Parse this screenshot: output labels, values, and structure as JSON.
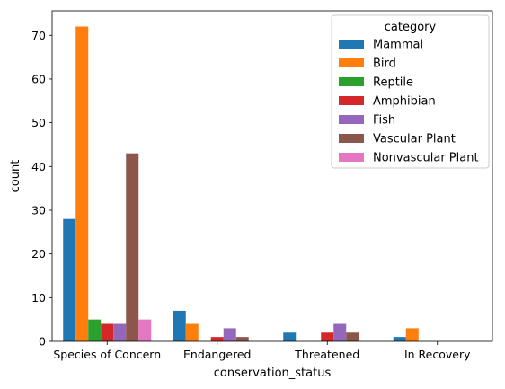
{
  "chart_data": {
    "type": "bar",
    "xlabel": "conservation_status",
    "ylabel": "count",
    "categories": [
      "Species of Concern",
      "Endangered",
      "Threatened",
      "In Recovery"
    ],
    "yticks": [
      0,
      10,
      20,
      30,
      40,
      50,
      60,
      70
    ],
    "ylim": [
      0,
      75.6
    ],
    "legend": {
      "title": "category",
      "placement": "top-right"
    },
    "series": [
      {
        "name": "Mammal",
        "color": "#1f77b4",
        "values": [
          28,
          7,
          2,
          1
        ]
      },
      {
        "name": "Bird",
        "color": "#ff7f0e",
        "values": [
          72,
          4,
          0,
          3
        ]
      },
      {
        "name": "Reptile",
        "color": "#2ca02c",
        "values": [
          5,
          0,
          0,
          0
        ]
      },
      {
        "name": "Amphibian",
        "color": "#d62728",
        "values": [
          4,
          1,
          2,
          0
        ]
      },
      {
        "name": "Fish",
        "color": "#9467bd",
        "values": [
          4,
          3,
          4,
          0
        ]
      },
      {
        "name": "Vascular Plant",
        "color": "#8c564b",
        "values": [
          43,
          1,
          2,
          0
        ]
      },
      {
        "name": "Nonvascular Plant",
        "color": "#e377c2",
        "values": [
          5,
          0,
          0,
          0
        ]
      }
    ]
  }
}
